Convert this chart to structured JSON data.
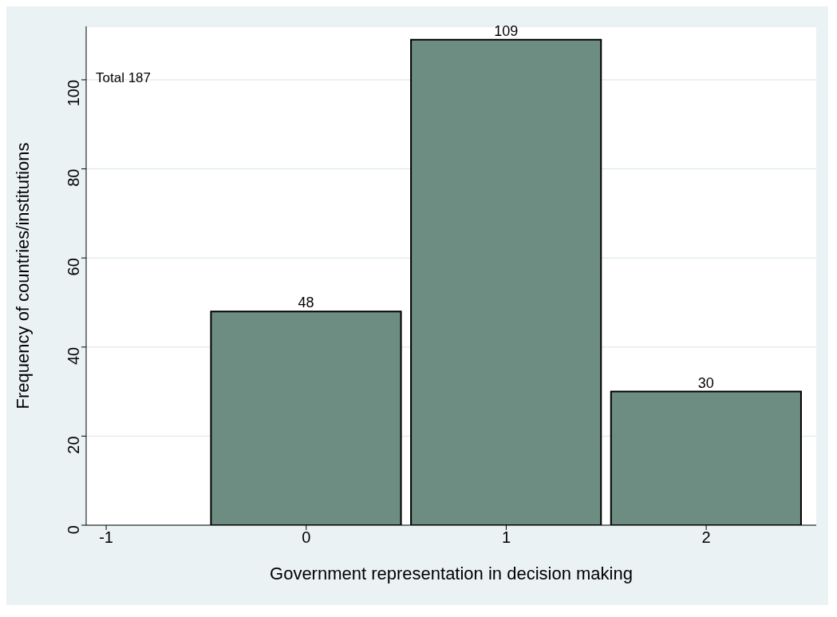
{
  "chart_data": {
    "type": "bar",
    "xlabel": "Government representation in decision making",
    "ylabel": "Frequency of countries/institutions",
    "x": [
      0,
      1,
      2
    ],
    "values": [
      48,
      109,
      30
    ],
    "color": "#6e8d82",
    "xlim": [
      -1.1,
      2.55
    ],
    "xticks": [
      -1,
      0,
      1,
      2
    ],
    "ylim": [
      0,
      112
    ],
    "yticks": [
      0,
      20,
      40,
      60,
      80,
      100
    ],
    "grid": "y",
    "data_labels": true,
    "annotations": [
      "Total 187"
    ]
  }
}
